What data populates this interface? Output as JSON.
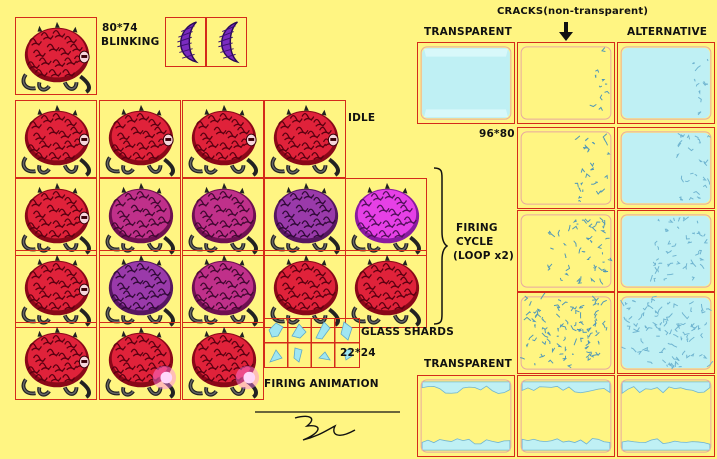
{
  "labels": {
    "blinking_size": "80*74",
    "blinking": "BLINKING",
    "idle": "IDLE",
    "firing_1": "FIRING",
    "firing_2": "CYCLE",
    "firing_3": "(LOOP x2)",
    "glass_shards": "GLASS SHARDS",
    "shards_size": "22*24",
    "firing_animation": "FIRING ANIMATION",
    "cracks_header": "CRACKS(non-transparent)",
    "transparent_top": "TRANSPARENT",
    "alternative": "ALTERNATIVE",
    "panel_size": "96*80",
    "transparent_bottom": "TRANSPARENT"
  },
  "colors": {
    "background": "#fff582",
    "frame_border": "#d42b1a",
    "brain_red": "#c8102e",
    "brain_magenta": "#b0207a",
    "brain_purple": "#8a2a9a",
    "brain_bright": "#d630d6",
    "glass": "#bff0f4"
  },
  "sprites": {
    "brain_frames": [
      {
        "row": 0,
        "col": 0,
        "tint": "red",
        "eye": "open"
      },
      {
        "row": 1,
        "col": 0,
        "tint": "red",
        "eye": "open"
      },
      {
        "row": 1,
        "col": 1,
        "tint": "red",
        "eye": "open"
      },
      {
        "row": 1,
        "col": 2,
        "tint": "red",
        "eye": "open"
      },
      {
        "row": 1,
        "col": 3,
        "tint": "red",
        "eye": "open"
      },
      {
        "row": 2,
        "col": 0,
        "tint": "red",
        "eye": "open"
      },
      {
        "row": 2,
        "col": 1,
        "tint": "magenta",
        "eye": "none"
      },
      {
        "row": 2,
        "col": 2,
        "tint": "magenta",
        "eye": "none"
      },
      {
        "row": 2,
        "col": 3,
        "tint": "purple",
        "eye": "none"
      },
      {
        "row": 2,
        "col": 4,
        "tint": "bright",
        "eye": "none"
      },
      {
        "row": 3,
        "col": 0,
        "tint": "red",
        "eye": "open"
      },
      {
        "row": 3,
        "col": 1,
        "tint": "purple",
        "eye": "none"
      },
      {
        "row": 3,
        "col": 2,
        "tint": "magenta",
        "eye": "none"
      },
      {
        "row": 3,
        "col": 3,
        "tint": "red",
        "eye": "none"
      },
      {
        "row": 3,
        "col": 4,
        "tint": "red",
        "eye": "none"
      },
      {
        "row": 4,
        "col": 0,
        "tint": "red",
        "eye": "open"
      },
      {
        "row": 4,
        "col": 1,
        "tint": "red",
        "eye": "glow"
      },
      {
        "row": 4,
        "col": 2,
        "tint": "red",
        "eye": "glow"
      }
    ],
    "blink_eyelids": 2,
    "glass_shards": 8,
    "crack_panels": {
      "transparent": 1,
      "cracks": [
        1,
        2,
        3,
        4
      ],
      "alternative": [
        1,
        2,
        3,
        4
      ],
      "bottom": 3
    }
  }
}
